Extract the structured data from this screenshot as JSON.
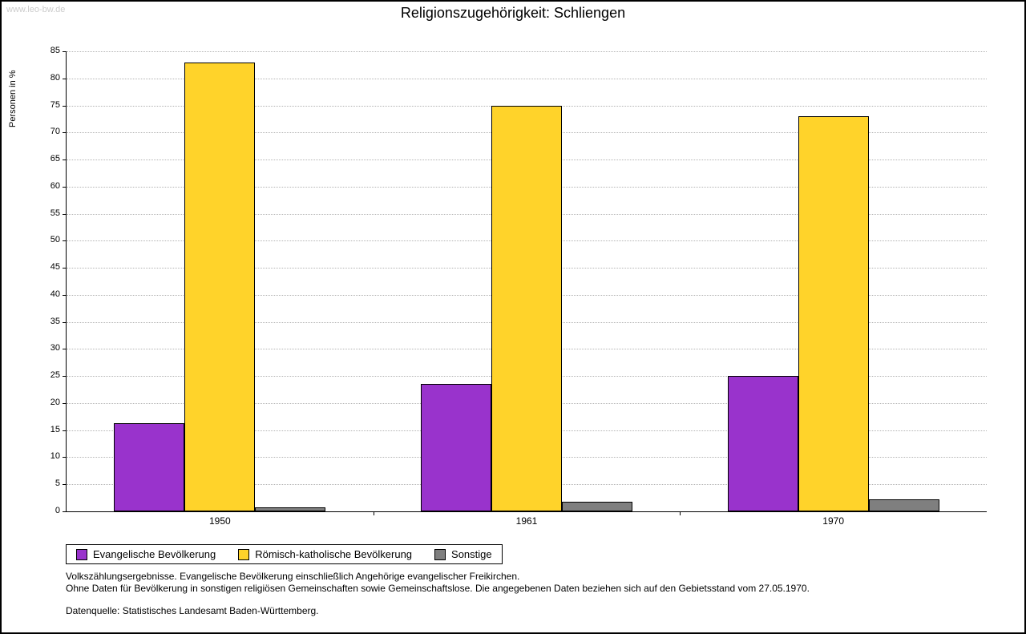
{
  "watermark": "www.leo-bw.de",
  "title": "Religionszugehörigkeit: Schliengen",
  "chart_data": {
    "type": "bar",
    "title": "Religionszugehörigkeit: Schliengen",
    "xlabel": "",
    "ylabel": "Personen in %",
    "ylim": [
      0,
      85
    ],
    "ytick_step": 5,
    "grid": true,
    "legend_position": "bottom",
    "categories": [
      "1950",
      "1961",
      "1970"
    ],
    "series": [
      {
        "name": "Evangelische Bevölkerung",
        "color": "#9933CC",
        "values": [
          16.3,
          23.5,
          25
        ]
      },
      {
        "name": "Römisch-katholische Bevölkerung",
        "color": "#FFD32A",
        "values": [
          83,
          75,
          73
        ]
      },
      {
        "name": "Sonstige",
        "color": "#7F7F7F",
        "values": [
          0.7,
          1.8,
          2.2
        ]
      }
    ]
  },
  "footnotes": {
    "line1": "Volkszählungsergebnisse. Evangelische Bevölkerung einschließlich Angehörige evangelischer Freikirchen.",
    "line2": "Ohne Daten für Bevölkerung in sonstigen religiösen Gemeinschaften sowie Gemeinschaftslose. Die angegebenen Daten beziehen sich auf den Gebietsstand vom 27.05.1970.",
    "line3": "Datenquelle: Statistisches Landesamt Baden-Württemberg."
  }
}
